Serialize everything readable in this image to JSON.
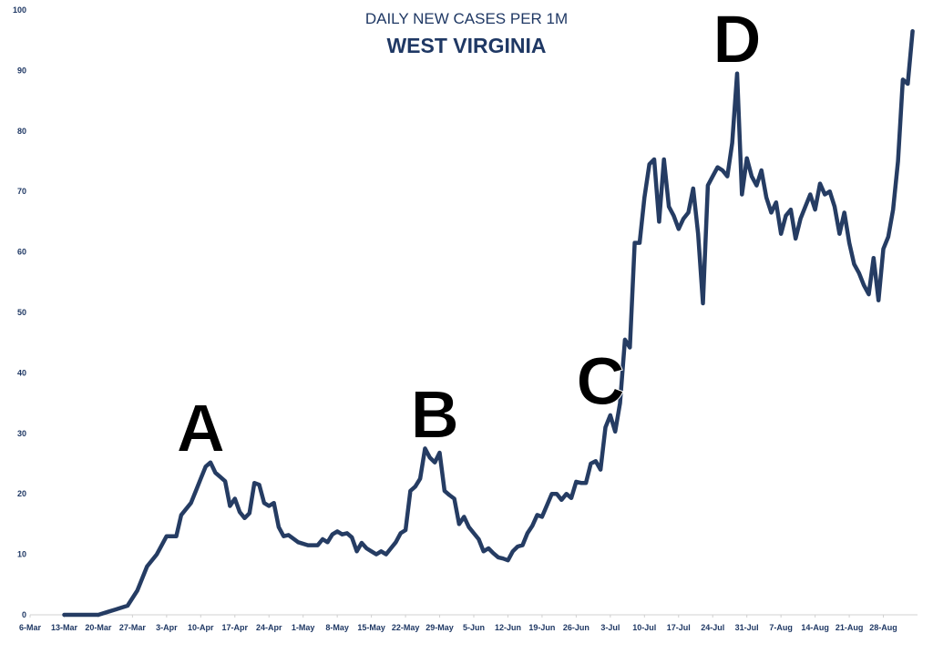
{
  "chart_data": {
    "type": "line",
    "title": "DAILY NEW CASES PER 1M",
    "subtitle": "WEST VIRGINIA",
    "xlabel": "",
    "ylabel": "",
    "ylim": [
      0,
      100
    ],
    "yticks": [
      0,
      10,
      20,
      30,
      40,
      50,
      60,
      70,
      80,
      90,
      100
    ],
    "x_start": "6-Mar",
    "x_end": "4-Sep",
    "xtick_labels": [
      "6-Mar",
      "13-Mar",
      "20-Mar",
      "27-Mar",
      "3-Apr",
      "10-Apr",
      "17-Apr",
      "24-Apr",
      "1-May",
      "8-May",
      "15-May",
      "22-May",
      "29-May",
      "5-Jun",
      "12-Jun",
      "19-Jun",
      "26-Jun",
      "3-Jul",
      "10-Jul",
      "17-Jul",
      "24-Jul",
      "31-Jul",
      "7-Aug",
      "14-Aug",
      "21-Aug",
      "28-Aug"
    ],
    "grid": false,
    "legend": "none",
    "line_color": "#253c63",
    "series": [
      {
        "x": [
          "13-Mar",
          "20-Mar",
          "22-Mar",
          "24-Mar",
          "26-Mar",
          "28-Mar",
          "30-Mar",
          "1-Apr",
          "2-Apr",
          "3-Apr",
          "5-Apr",
          "6-Apr",
          "8-Apr",
          "9-Apr",
          "10-Apr",
          "11-Apr",
          "12-Apr",
          "13-Apr",
          "14-Apr",
          "15-Apr",
          "16-Apr",
          "17-Apr",
          "18-Apr",
          "19-Apr",
          "20-Apr",
          "21-Apr",
          "22-Apr",
          "23-Apr",
          "24-Apr",
          "25-Apr",
          "26-Apr",
          "27-Apr",
          "28-Apr",
          "30-Apr",
          "2-May",
          "4-May",
          "5-May",
          "6-May",
          "7-May",
          "8-May",
          "9-May",
          "10-May",
          "11-May",
          "12-May",
          "13-May",
          "14-May",
          "15-May",
          "16-May",
          "17-May",
          "18-May",
          "19-May",
          "20-May",
          "21-May",
          "22-May",
          "23-May",
          "24-May",
          "25-May",
          "26-May",
          "27-May",
          "28-May",
          "29-May",
          "30-May",
          "31-May",
          "1-Jun",
          "2-Jun",
          "3-Jun",
          "4-Jun",
          "5-Jun",
          "6-Jun",
          "7-Jun",
          "8-Jun",
          "9-Jun",
          "10-Jun",
          "11-Jun",
          "12-Jun",
          "13-Jun",
          "14-Jun",
          "15-Jun",
          "16-Jun",
          "17-Jun",
          "18-Jun",
          "19-Jun",
          "20-Jun",
          "21-Jun",
          "22-Jun",
          "23-Jun",
          "24-Jun",
          "25-Jun",
          "26-Jun",
          "27-Jun",
          "28-Jun",
          "29-Jun",
          "30-Jun",
          "1-Jul",
          "2-Jul",
          "3-Jul",
          "4-Jul",
          "5-Jul",
          "6-Jul",
          "7-Jul",
          "8-Jul",
          "9-Jul",
          "10-Jul",
          "11-Jul",
          "12-Jul",
          "13-Jul",
          "14-Jul",
          "15-Jul",
          "16-Jul",
          "17-Jul",
          "18-Jul",
          "19-Jul",
          "20-Jul",
          "21-Jul",
          "22-Jul",
          "23-Jul",
          "24-Jul",
          "25-Jul",
          "26-Jul",
          "27-Jul",
          "28-Jul",
          "29-Jul",
          "30-Jul",
          "31-Jul",
          "1-Aug",
          "2-Aug",
          "3-Aug",
          "4-Aug",
          "5-Aug",
          "6-Aug",
          "7-Aug",
          "8-Aug",
          "9-Aug",
          "10-Aug",
          "11-Aug",
          "12-Aug",
          "13-Aug",
          "14-Aug",
          "15-Aug",
          "16-Aug",
          "17-Aug",
          "18-Aug",
          "19-Aug",
          "20-Aug",
          "21-Aug",
          "22-Aug",
          "23-Aug",
          "24-Aug",
          "25-Aug",
          "26-Aug",
          "27-Aug",
          "28-Aug",
          "29-Aug",
          "30-Aug",
          "31-Aug",
          "1-Sep",
          "2-Sep",
          "3-Sep"
        ],
        "values": [
          0,
          0,
          0.5,
          1,
          1.5,
          4,
          8,
          10,
          11.5,
          13,
          13,
          16.5,
          18.5,
          20.5,
          22.5,
          24.5,
          25.2,
          23.5,
          22.8,
          22.1,
          18,
          19.2,
          17,
          16,
          16.8,
          21.8,
          21.5,
          18.5,
          18,
          18.5,
          14.5,
          13,
          13.2,
          12,
          11.5,
          11.5,
          12.5,
          12,
          13.3,
          13.8,
          13.3,
          13.5,
          12.8,
          10.5,
          11.9,
          11,
          10.5,
          10,
          10.5,
          10,
          11,
          12,
          13.5,
          14,
          20.5,
          21.2,
          22.5,
          27.5,
          26,
          25.2,
          26.8,
          20.5,
          19.8,
          19.2,
          15,
          16.2,
          14.5,
          13.5,
          12.5,
          10.5,
          11,
          10.2,
          9.5,
          9.3,
          9,
          10.5,
          11.3,
          11.5,
          13.5,
          14.7,
          16.5,
          16.2,
          18.1,
          20,
          20,
          19,
          20,
          19.3,
          22,
          21.8,
          21.8,
          25,
          25.4,
          24,
          31,
          33,
          30.3,
          35,
          45.5,
          44.2,
          61.5,
          61.5,
          69,
          74.5,
          75.3,
          65,
          75.3,
          67.5,
          66,
          63.8,
          65.5,
          66.5,
          70.5,
          63,
          51.5,
          71,
          72.5,
          74,
          73.5,
          72.5,
          78,
          89.5,
          69.5,
          75.5,
          72.5,
          71,
          73.5,
          69,
          66.5,
          68.2,
          63,
          66,
          67,
          62.2,
          65.5,
          67.5,
          69.5,
          67,
          71.3,
          69.5,
          70,
          67.5,
          63,
          66.5,
          61.5,
          58,
          56.5,
          54.5,
          53,
          59,
          52,
          60.5,
          62.5,
          67,
          75,
          88.5,
          87.8,
          96.5
        ]
      }
    ],
    "annotations": [
      {
        "text": "A",
        "x": "10-Apr"
      },
      {
        "text": "B",
        "x": "28-May"
      },
      {
        "text": "C",
        "x": "1-Jul"
      },
      {
        "text": "D",
        "x": "29-Jul"
      }
    ]
  }
}
